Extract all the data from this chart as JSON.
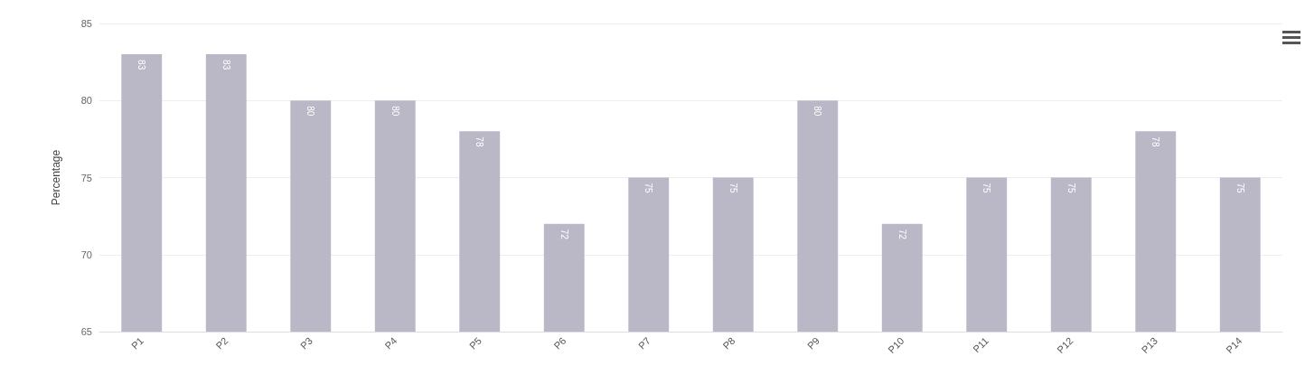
{
  "chart_data": {
    "type": "bar",
    "ylabel": "Percentage",
    "categories": [
      "P1",
      "P2",
      "P3",
      "P4",
      "P5",
      "P6",
      "P7",
      "P8",
      "P9",
      "P10",
      "P11",
      "P12",
      "P13",
      "P14"
    ],
    "values": [
      83,
      83,
      80,
      80,
      78,
      72,
      75,
      75,
      80,
      72,
      75,
      75,
      78,
      75
    ],
    "color": "#bab7c7",
    "ylim": [
      65,
      85
    ],
    "yticks": [
      65,
      70,
      75,
      80,
      85
    ],
    "grid": "y",
    "data_labels": true
  }
}
